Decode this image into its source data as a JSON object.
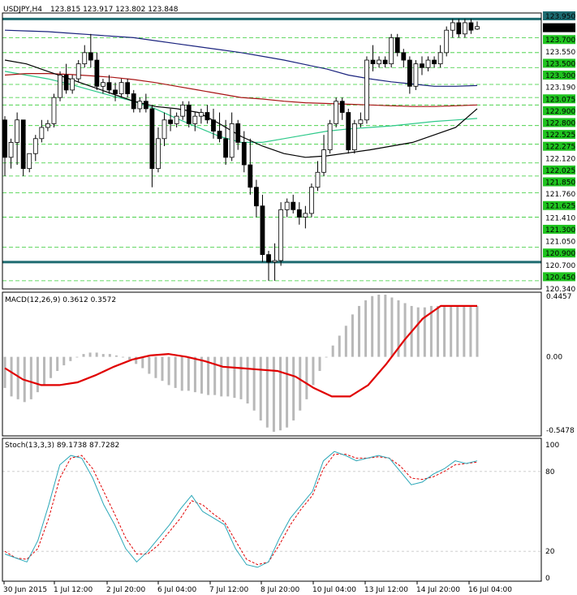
{
  "chart_data": [
    {
      "type": "candlestick",
      "title": "USDJPY,H4",
      "ohlc_readout": "123.815 123.917 123.802 123.848",
      "x_labels": [
        "30 Jun 2015",
        "1 Jul 12:00",
        "2 Jul 20:00",
        "6 Jul 04:00",
        "7 Jul 12:00",
        "8 Jul 20:00",
        "10 Jul 04:00",
        "13 Jul 12:00",
        "14 Jul 20:00",
        "16 Jul 04:00"
      ],
      "y_ticks": [
        "123.950",
        "123.848",
        "123.700",
        "123.550",
        "123.500",
        "123.300",
        "123.190",
        "123.075",
        "122.900",
        "122.800",
        "122.525",
        "122.275",
        "122.120",
        "122.025",
        "121.850",
        "121.760",
        "121.625",
        "121.410",
        "121.300",
        "121.050",
        "120.900",
        "120.700",
        "120.450",
        "120.340"
      ],
      "y_tick_colors": [
        "#000000",
        "#000000",
        "#17a817",
        "#000000",
        "#17a817",
        "#17a817",
        "#000000",
        "#17a817",
        "#17a817",
        "#17a817",
        "#17a817",
        "#17a817",
        "#000000",
        "#17a817",
        "#17a817",
        "#000000",
        "#17a817",
        "#000000",
        "#17a817",
        "#000000",
        "#17a817",
        "#000000",
        "#17a817",
        "#000000"
      ],
      "ylim": [
        120.34,
        124.03
      ],
      "horizontal_levels": [
        123.95,
        120.7
      ],
      "green_dashed_levels": [
        123.7,
        123.5,
        123.3,
        123.075,
        122.9,
        122.8,
        122.525,
        122.275,
        122.025,
        121.85,
        121.625,
        121.3,
        120.9,
        120.45
      ],
      "candles": [
        {
          "o": 122.6,
          "h": 122.65,
          "l": 121.85,
          "c": 122.1
        },
        {
          "o": 122.1,
          "h": 122.35,
          "l": 121.95,
          "c": 122.3
        },
        {
          "o": 122.3,
          "h": 122.7,
          "l": 122.0,
          "c": 122.6
        },
        {
          "o": 122.6,
          "h": 122.6,
          "l": 121.85,
          "c": 121.95
        },
        {
          "o": 121.95,
          "h": 122.15,
          "l": 121.9,
          "c": 122.15
        },
        {
          "o": 122.15,
          "h": 122.4,
          "l": 122.05,
          "c": 122.35
        },
        {
          "o": 122.35,
          "h": 122.6,
          "l": 122.3,
          "c": 122.5
        },
        {
          "o": 122.5,
          "h": 122.6,
          "l": 122.45,
          "c": 122.55
        },
        {
          "o": 122.55,
          "h": 122.95,
          "l": 122.5,
          "c": 122.9
        },
        {
          "o": 122.9,
          "h": 123.25,
          "l": 122.85,
          "c": 123.2
        },
        {
          "o": 123.2,
          "h": 123.35,
          "l": 122.95,
          "c": 123.0
        },
        {
          "o": 123.0,
          "h": 123.2,
          "l": 122.95,
          "c": 123.15
        },
        {
          "o": 123.15,
          "h": 123.4,
          "l": 123.1,
          "c": 123.35
        },
        {
          "o": 123.35,
          "h": 123.6,
          "l": 123.3,
          "c": 123.5
        },
        {
          "o": 123.5,
          "h": 123.75,
          "l": 123.3,
          "c": 123.4
        },
        {
          "o": 123.4,
          "h": 123.5,
          "l": 123.0,
          "c": 123.05
        },
        {
          "o": 123.05,
          "h": 123.15,
          "l": 122.95,
          "c": 123.1
        },
        {
          "o": 123.1,
          "h": 123.2,
          "l": 122.95,
          "c": 123.0
        },
        {
          "o": 123.0,
          "h": 123.1,
          "l": 122.85,
          "c": 122.95
        },
        {
          "o": 122.95,
          "h": 123.15,
          "l": 122.9,
          "c": 123.1
        },
        {
          "o": 123.1,
          "h": 123.15,
          "l": 122.9,
          "c": 122.95
        },
        {
          "o": 122.95,
          "h": 123.0,
          "l": 122.7,
          "c": 122.75
        },
        {
          "o": 122.75,
          "h": 122.9,
          "l": 122.7,
          "c": 122.85
        },
        {
          "o": 122.85,
          "h": 122.95,
          "l": 122.7,
          "c": 122.75
        },
        {
          "o": 122.75,
          "h": 122.8,
          "l": 121.7,
          "c": 121.95
        },
        {
          "o": 121.95,
          "h": 122.5,
          "l": 121.9,
          "c": 122.35
        },
        {
          "o": 122.35,
          "h": 122.7,
          "l": 122.25,
          "c": 122.6
        },
        {
          "o": 122.6,
          "h": 122.75,
          "l": 122.45,
          "c": 122.55
        },
        {
          "o": 122.55,
          "h": 122.7,
          "l": 122.5,
          "c": 122.65
        },
        {
          "o": 122.65,
          "h": 122.85,
          "l": 122.6,
          "c": 122.8
        },
        {
          "o": 122.8,
          "h": 122.85,
          "l": 122.5,
          "c": 122.55
        },
        {
          "o": 122.55,
          "h": 122.7,
          "l": 122.45,
          "c": 122.65
        },
        {
          "o": 122.65,
          "h": 122.75,
          "l": 122.55,
          "c": 122.7
        },
        {
          "o": 122.7,
          "h": 122.8,
          "l": 122.55,
          "c": 122.6
        },
        {
          "o": 122.6,
          "h": 122.75,
          "l": 122.35,
          "c": 122.45
        },
        {
          "o": 122.45,
          "h": 122.7,
          "l": 122.3,
          "c": 122.35
        },
        {
          "o": 122.35,
          "h": 122.6,
          "l": 122.0,
          "c": 122.1
        },
        {
          "o": 122.1,
          "h": 122.7,
          "l": 122.05,
          "c": 122.55
        },
        {
          "o": 122.55,
          "h": 122.6,
          "l": 122.2,
          "c": 122.3
        },
        {
          "o": 122.3,
          "h": 122.45,
          "l": 121.9,
          "c": 122.0
        },
        {
          "o": 122.0,
          "h": 122.35,
          "l": 121.6,
          "c": 121.7
        },
        {
          "o": 121.7,
          "h": 121.8,
          "l": 121.3,
          "c": 121.45
        },
        {
          "o": 121.45,
          "h": 121.6,
          "l": 120.7,
          "c": 120.8
        },
        {
          "o": 120.8,
          "h": 120.85,
          "l": 120.45,
          "c": 120.7
        },
        {
          "o": 120.7,
          "h": 120.95,
          "l": 120.45,
          "c": 120.72
        },
        {
          "o": 120.72,
          "h": 121.5,
          "l": 120.65,
          "c": 121.4
        },
        {
          "o": 121.4,
          "h": 121.55,
          "l": 121.3,
          "c": 121.5
        },
        {
          "o": 121.5,
          "h": 121.6,
          "l": 121.35,
          "c": 121.4
        },
        {
          "o": 121.4,
          "h": 121.5,
          "l": 121.2,
          "c": 121.3
        },
        {
          "o": 121.3,
          "h": 121.45,
          "l": 121.15,
          "c": 121.35
        },
        {
          "o": 121.35,
          "h": 121.75,
          "l": 121.3,
          "c": 121.7
        },
        {
          "o": 121.7,
          "h": 122.05,
          "l": 121.65,
          "c": 121.9
        },
        {
          "o": 121.9,
          "h": 122.4,
          "l": 121.85,
          "c": 122.2
        },
        {
          "o": 122.2,
          "h": 122.6,
          "l": 122.15,
          "c": 122.55
        },
        {
          "o": 122.55,
          "h": 122.9,
          "l": 122.5,
          "c": 122.85
        },
        {
          "o": 122.85,
          "h": 122.9,
          "l": 122.6,
          "c": 122.7
        },
        {
          "o": 122.7,
          "h": 122.75,
          "l": 122.15,
          "c": 122.2
        },
        {
          "o": 122.2,
          "h": 122.6,
          "l": 122.15,
          "c": 122.55
        },
        {
          "o": 122.55,
          "h": 122.7,
          "l": 122.5,
          "c": 122.6
        },
        {
          "o": 122.6,
          "h": 123.45,
          "l": 122.55,
          "c": 123.4
        },
        {
          "o": 123.4,
          "h": 123.6,
          "l": 123.25,
          "c": 123.35
        },
        {
          "o": 123.35,
          "h": 123.45,
          "l": 123.3,
          "c": 123.4
        },
        {
          "o": 123.4,
          "h": 123.45,
          "l": 123.3,
          "c": 123.35
        },
        {
          "o": 123.35,
          "h": 123.75,
          "l": 123.3,
          "c": 123.7
        },
        {
          "o": 123.7,
          "h": 123.75,
          "l": 123.45,
          "c": 123.5
        },
        {
          "o": 123.5,
          "h": 123.55,
          "l": 123.3,
          "c": 123.4
        },
        {
          "o": 123.4,
          "h": 123.45,
          "l": 122.95,
          "c": 123.05
        },
        {
          "o": 123.05,
          "h": 123.4,
          "l": 123.0,
          "c": 123.35
        },
        {
          "o": 123.35,
          "h": 123.45,
          "l": 123.2,
          "c": 123.3
        },
        {
          "o": 123.3,
          "h": 123.45,
          "l": 123.25,
          "c": 123.4
        },
        {
          "o": 123.4,
          "h": 123.45,
          "l": 123.3,
          "c": 123.35
        },
        {
          "o": 123.35,
          "h": 123.6,
          "l": 123.3,
          "c": 123.5
        },
        {
          "o": 123.5,
          "h": 123.85,
          "l": 123.45,
          "c": 123.8
        },
        {
          "o": 123.8,
          "h": 123.95,
          "l": 123.7,
          "c": 123.9
        },
        {
          "o": 123.9,
          "h": 123.95,
          "l": 123.7,
          "c": 123.75
        },
        {
          "o": 123.75,
          "h": 123.95,
          "l": 123.7,
          "c": 123.9
        },
        {
          "o": 123.9,
          "h": 123.95,
          "l": 123.75,
          "c": 123.8
        },
        {
          "o": 123.815,
          "h": 123.917,
          "l": 123.802,
          "c": 123.848
        }
      ],
      "ma_blue": [
        123.8,
        123.79,
        123.78,
        123.76,
        123.74,
        123.72,
        123.7,
        123.66,
        123.62,
        123.58,
        123.54,
        123.5,
        123.45,
        123.4,
        123.34,
        123.28,
        123.2,
        123.15,
        123.11,
        123.08,
        123.05,
        123.05,
        123.06
      ],
      "ma_red": [
        123.2,
        123.22,
        123.22,
        123.21,
        123.19,
        123.17,
        123.14,
        123.1,
        123.05,
        123.0,
        122.95,
        122.9,
        122.88,
        122.85,
        122.83,
        122.82,
        122.81,
        122.8,
        122.79,
        122.78,
        122.78,
        122.79,
        122.8
      ],
      "ma_green": [
        123.25,
        123.2,
        123.15,
        123.08,
        123.0,
        122.92,
        122.85,
        122.75,
        122.62,
        122.5,
        122.38,
        122.3,
        122.3,
        122.35,
        122.4,
        122.45,
        122.48,
        122.5,
        122.52,
        122.55,
        122.58,
        122.6,
        122.62
      ],
      "ma_black": [
        123.4,
        123.35,
        123.25,
        123.15,
        123.05,
        122.95,
        122.85,
        122.78,
        122.75,
        122.7,
        122.55,
        122.38,
        122.25,
        122.15,
        122.1,
        122.12,
        122.16,
        122.2,
        122.25,
        122.3,
        122.4,
        122.5,
        122.75
      ]
    },
    {
      "type": "bar",
      "title": "MACD(12,26,9) 0.3612 0.3572",
      "y_ticks": [
        "0.4457",
        "0.00",
        "-0.5478"
      ],
      "ylim": [
        -0.5478,
        0.4457
      ],
      "histogram": [
        -0.22,
        -0.28,
        -0.3,
        -0.32,
        -0.3,
        -0.25,
        -0.2,
        -0.15,
        -0.1,
        -0.06,
        -0.03,
        0.0,
        0.02,
        0.03,
        0.03,
        0.02,
        0.02,
        0.01,
        0.0,
        -0.02,
        -0.05,
        -0.08,
        -0.12,
        -0.15,
        -0.17,
        -0.2,
        -0.22,
        -0.24,
        -0.24,
        -0.25,
        -0.26,
        -0.27,
        -0.27,
        -0.28,
        -0.28,
        -0.29,
        -0.3,
        -0.33,
        -0.38,
        -0.45,
        -0.5,
        -0.53,
        -0.52,
        -0.5,
        -0.45,
        -0.38,
        -0.3,
        -0.2,
        -0.1,
        0.0,
        0.08,
        0.15,
        0.22,
        0.3,
        0.36,
        0.4,
        0.43,
        0.44,
        0.44,
        0.42,
        0.4,
        0.38,
        0.36,
        0.35,
        0.35,
        0.36,
        0.36,
        0.36,
        0.36,
        0.36,
        0.36,
        0.36,
        0.36
      ],
      "signal": [
        -0.08,
        -0.16,
        -0.2,
        -0.2,
        -0.18,
        -0.13,
        -0.07,
        -0.02,
        0.01,
        0.02,
        0.0,
        -0.03,
        -0.07,
        -0.08,
        -0.09,
        -0.1,
        -0.14,
        -0.22,
        -0.28,
        -0.28,
        -0.2,
        -0.05,
        0.12,
        0.27,
        0.36,
        0.36,
        0.36
      ]
    },
    {
      "type": "line",
      "title": "Stoch(13,3,3) 89.1738 87.7282",
      "y_ticks": [
        "100",
        "80",
        "20",
        "0"
      ],
      "ylim": [
        0,
        100
      ],
      "main": [
        18,
        15,
        12,
        28,
        55,
        85,
        92,
        90,
        75,
        55,
        40,
        22,
        12,
        20,
        30,
        40,
        52,
        62,
        50,
        45,
        40,
        22,
        10,
        8,
        12,
        30,
        45,
        55,
        65,
        88,
        95,
        92,
        88,
        90,
        92,
        90,
        80,
        70,
        72,
        78,
        82,
        88,
        86,
        88
      ],
      "signal": [
        20,
        15,
        14,
        22,
        45,
        75,
        90,
        92,
        82,
        65,
        48,
        30,
        18,
        18,
        25,
        35,
        45,
        58,
        55,
        48,
        42,
        28,
        14,
        10,
        12,
        25,
        40,
        52,
        62,
        82,
        93,
        93,
        90,
        90,
        91,
        90,
        84,
        75,
        74,
        76,
        80,
        85,
        86,
        87
      ]
    }
  ]
}
